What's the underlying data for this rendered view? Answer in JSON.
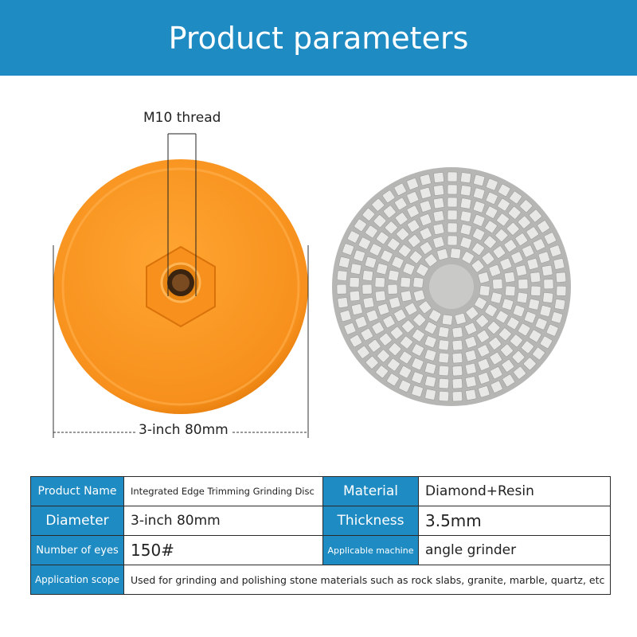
{
  "header": {
    "title": "Product parameters"
  },
  "annotations": {
    "thread": "M10 thread",
    "diameter": "3-inch 80mm"
  },
  "table": {
    "rows": [
      [
        "Product Name",
        "Integrated Edge Trimming Grinding Disc",
        "Material",
        "Diamond+Resin"
      ],
      [
        "Diameter",
        "3-inch 80mm",
        "Thickness",
        "3.5mm"
      ],
      [
        "Number of eyes",
        "150#",
        "Applicable machine",
        "angle grinder"
      ],
      [
        "Application scope",
        "Used for grinding and polishing stone materials such as rock slabs, granite, marble, quartz, etc"
      ]
    ]
  }
}
